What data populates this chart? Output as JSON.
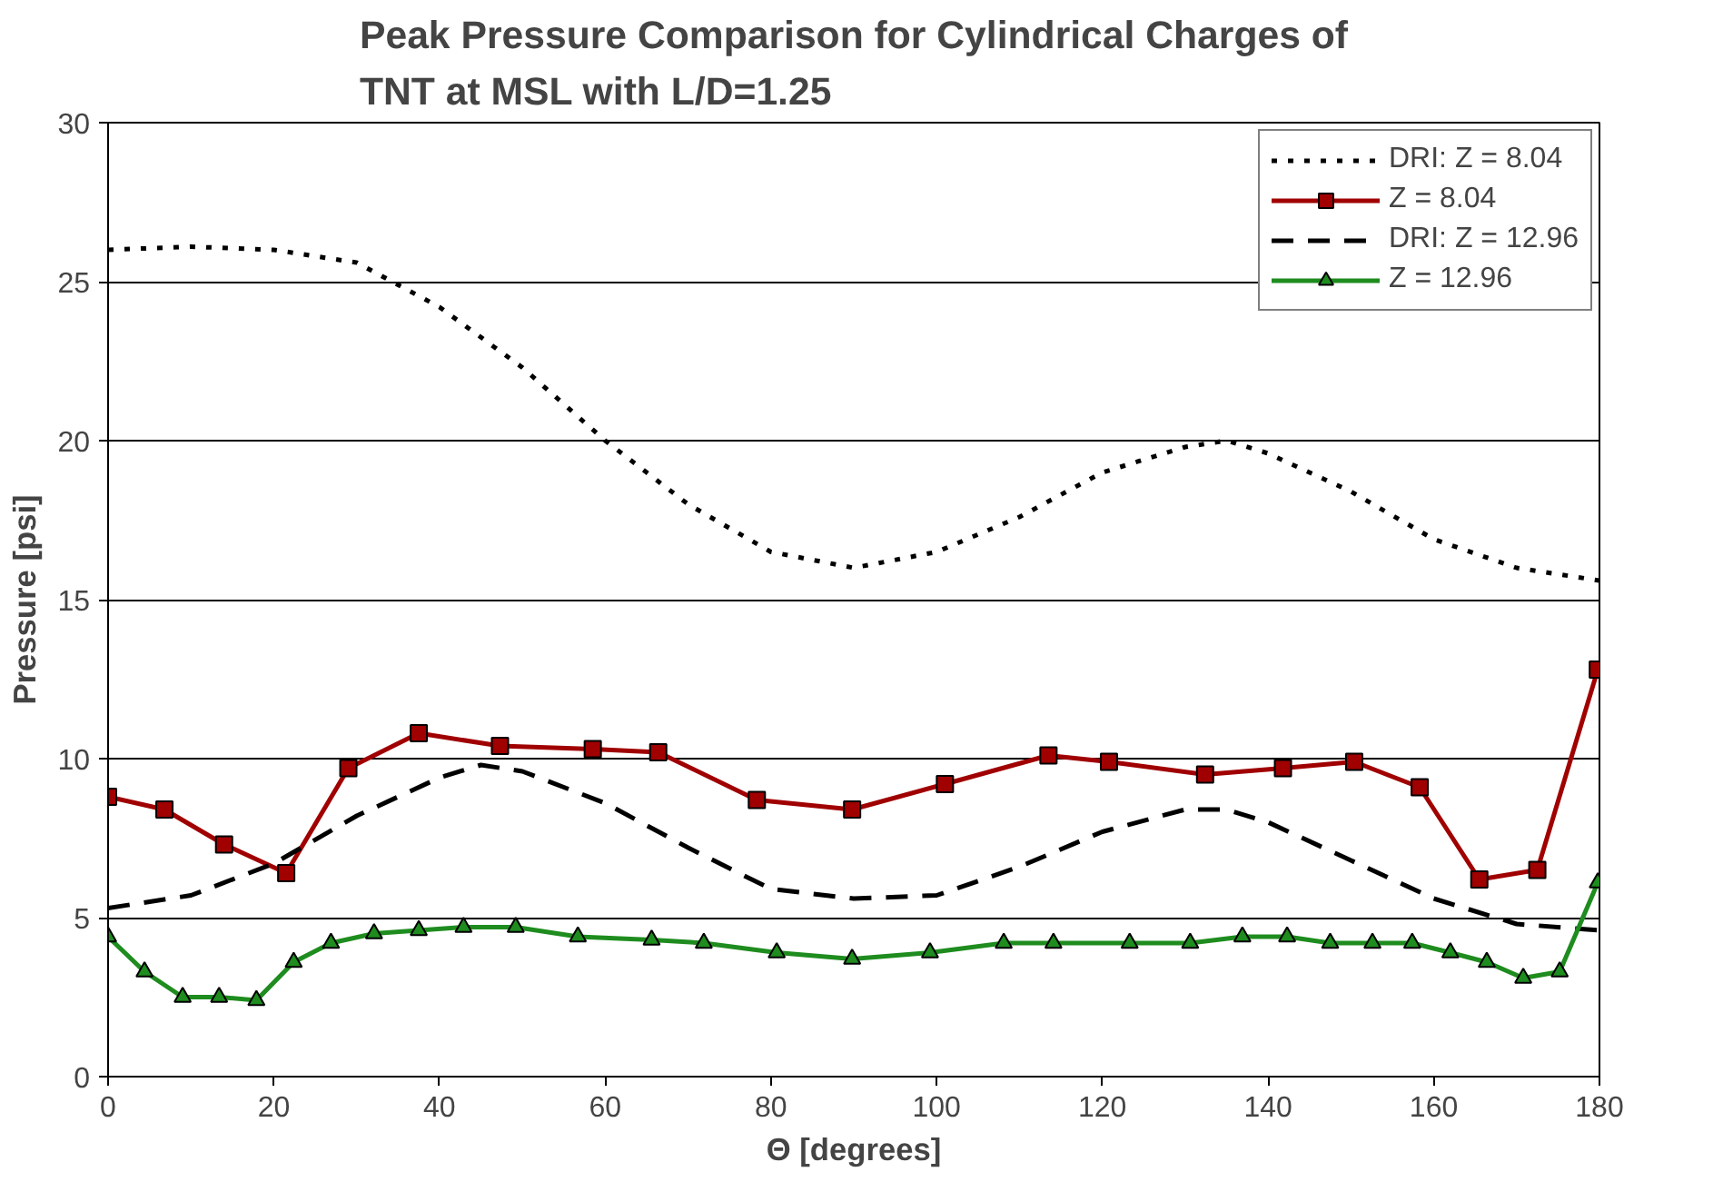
{
  "chart_data": {
    "type": "line",
    "title": "Peak Pressure Comparison for Cylindrical Charges of\nTNT at MSL with L/D=1.25",
    "xlabel": "Θ [degrees]",
    "ylabel": "Pressure [psi]",
    "xlim": [
      0,
      180
    ],
    "xticks": [
      0,
      20,
      40,
      60,
      80,
      100,
      120,
      140,
      160,
      180
    ],
    "ylim": [
      0,
      30
    ],
    "yticks": [
      0,
      5,
      10,
      15,
      20,
      25,
      30
    ],
    "grid": "y",
    "legend": "top right",
    "series": [
      {
        "name": "DRI: Z = 8.04",
        "color": "#000000",
        "line_style": "dotted",
        "marker": "none",
        "x": [
          0,
          10,
          20,
          30,
          40,
          50,
          60,
          70,
          80,
          90,
          100,
          110,
          120,
          130,
          135,
          140,
          150,
          160,
          170,
          180
        ],
        "values": [
          26.0,
          26.1,
          26.0,
          25.6,
          24.2,
          22.3,
          20.0,
          18.0,
          16.5,
          16.0,
          16.5,
          17.6,
          19.0,
          19.8,
          20.0,
          19.6,
          18.4,
          16.9,
          16.0,
          15.6
        ]
      },
      {
        "name": "Z = 8.04",
        "color": "#a00000",
        "line_style": "solid",
        "marker": "square",
        "x": [
          0,
          6.8,
          14,
          21.5,
          29,
          37.5,
          47.3,
          58.5,
          66.4,
          78.3,
          89.8,
          101,
          113.5,
          120.8,
          132.4,
          141.8,
          150.4,
          158.3,
          165.5,
          172.5,
          179.8
        ],
        "values": [
          8.8,
          8.4,
          7.3,
          6.4,
          9.7,
          10.8,
          10.4,
          10.3,
          10.2,
          8.7,
          8.4,
          9.2,
          10.1,
          9.9,
          9.5,
          9.7,
          9.9,
          9.1,
          6.2,
          6.5,
          12.8
        ]
      },
      {
        "name": "DRI: Z = 12.96",
        "color": "#000000",
        "line_style": "dashed",
        "marker": "none",
        "x": [
          0,
          10,
          20,
          30,
          40,
          45,
          50,
          60,
          70,
          80,
          90,
          100,
          110,
          120,
          130,
          135,
          140,
          150,
          160,
          170,
          180
        ],
        "values": [
          5.3,
          5.7,
          6.7,
          8.2,
          9.4,
          9.8,
          9.6,
          8.6,
          7.2,
          5.9,
          5.6,
          5.7,
          6.6,
          7.7,
          8.4,
          8.4,
          8.0,
          6.8,
          5.6,
          4.8,
          4.6
        ]
      },
      {
        "name": "Z = 12.96",
        "color": "#1e8c1e",
        "line_style": "solid",
        "marker": "triangle",
        "x": [
          0,
          4.4,
          9,
          13.4,
          17.9,
          22.4,
          26.9,
          32.1,
          37.5,
          42.9,
          49.2,
          56.7,
          65.6,
          71.9,
          80.7,
          89.8,
          99.2,
          108.1,
          114.1,
          123.3,
          130.6,
          136.9,
          142.3,
          147.5,
          152.6,
          157.4,
          162,
          166.4,
          170.8,
          175.2,
          179.8
        ],
        "values": [
          4.4,
          3.3,
          2.5,
          2.5,
          2.4,
          3.6,
          4.2,
          4.5,
          4.6,
          4.7,
          4.7,
          4.4,
          4.3,
          4.2,
          3.9,
          3.7,
          3.9,
          4.2,
          4.2,
          4.2,
          4.2,
          4.4,
          4.4,
          4.2,
          4.2,
          4.2,
          3.9,
          3.6,
          3.1,
          3.3,
          6.1
        ]
      }
    ]
  }
}
